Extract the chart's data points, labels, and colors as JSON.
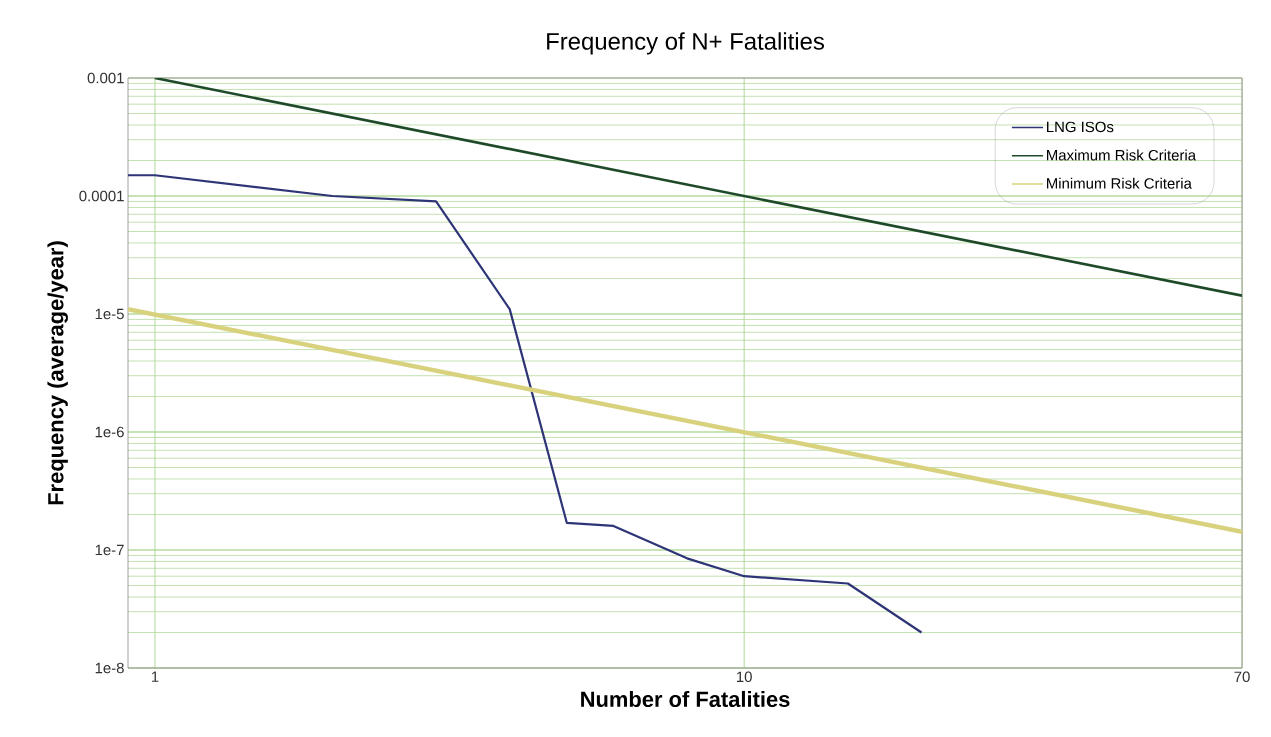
{
  "chart_data": {
    "type": "line",
    "title": "Frequency of N+ Fatalities",
    "xlabel": "Number of Fatalities",
    "ylabel": "Frequency (average/year)",
    "series": [
      {
        "name": "LNG ISOs",
        "color": "#2e3577",
        "x": [
          0.9,
          1,
          2,
          3,
          4,
          5,
          6,
          8,
          10,
          15,
          20
        ],
        "values": [
          0.00015,
          0.00015,
          0.0001,
          9e-05,
          1.1e-05,
          1.7e-07,
          1.6e-07,
          8.5e-08,
          6e-08,
          5.2e-08,
          2e-08
        ]
      },
      {
        "name": "Maximum Risk Criteria",
        "color": "#1f4a2a",
        "x": [
          1,
          70
        ],
        "values": [
          0.001,
          1.43e-05
        ]
      },
      {
        "name": "Minimum Risk Criteria",
        "color": "#d8d27e",
        "x": [
          0.9,
          70
        ],
        "values": [
          1.1e-05,
          1.43e-07
        ]
      }
    ],
    "log": "xy",
    "xlim": [
      0.9,
      70
    ],
    "ylim": [
      1e-08,
      0.001
    ],
    "xticks": [
      1,
      10,
      70
    ],
    "yticks": [
      {
        "value": 1e-08,
        "label": "1e-8"
      },
      {
        "value": 1e-07,
        "label": "1e-7"
      },
      {
        "value": 1e-06,
        "label": "1e-6"
      },
      {
        "value": 1e-05,
        "label": "1e-5"
      },
      {
        "value": 0.0001,
        "label": "0.0001"
      },
      {
        "value": 0.001,
        "label": "0.001"
      }
    ],
    "grid": true,
    "legend": "top right"
  }
}
